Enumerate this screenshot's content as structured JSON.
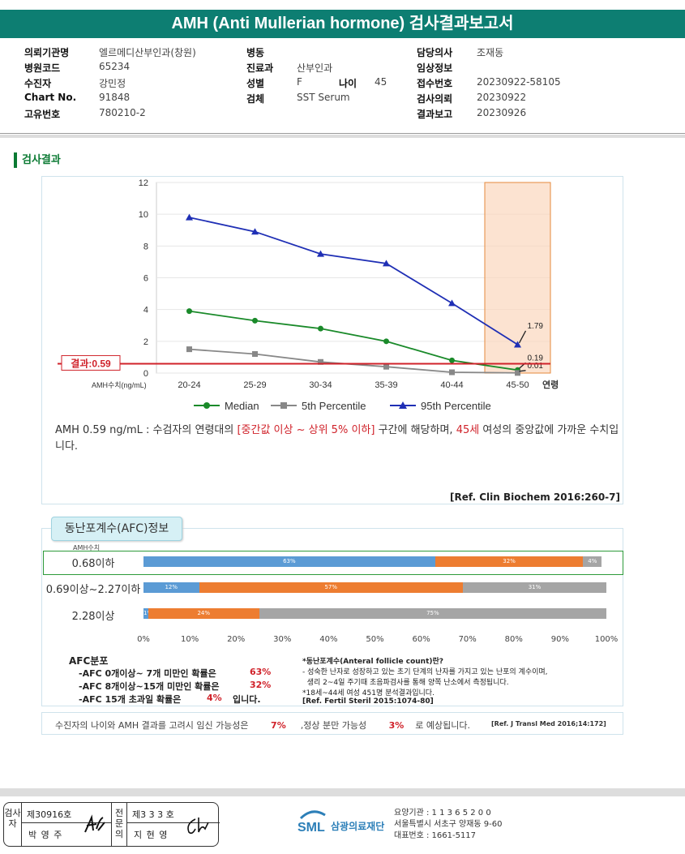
{
  "title": "AMH (Anti Mullerian hormone) 검사결과보고서",
  "info": {
    "col1": [
      [
        "의뢰기관명",
        "엘르메디산부인과(창원)"
      ],
      [
        "병원코드",
        "65234"
      ],
      [
        "수진자",
        "강민정"
      ],
      [
        "Chart No.",
        "91848"
      ],
      [
        "고유번호",
        "780210-2"
      ]
    ],
    "col2": [
      [
        "병동",
        ""
      ],
      [
        "진료과",
        "산부인과"
      ],
      [
        "성별",
        "F"
      ],
      [
        "검체",
        "SST Serum"
      ]
    ],
    "age_label": "나이",
    "age_val": "45",
    "col3": [
      [
        "담당의사",
        "조재동"
      ],
      [
        "임상정보",
        ""
      ],
      [
        "접수번호",
        "20230922-58105"
      ],
      [
        "검사의뢰",
        "20230922"
      ],
      [
        "결과보고",
        "20230926"
      ]
    ]
  },
  "section_title": "검사결과",
  "chart_data": {
    "type": "line",
    "categories": [
      "20-24",
      "25-29",
      "30-34",
      "35-39",
      "40-44",
      "45-50"
    ],
    "x_suffix": "연령",
    "ylabel": "AMH수치(ng/mL)",
    "ylim": [
      0,
      12
    ],
    "yticks": [
      "0",
      "2",
      "4",
      "6",
      "8",
      "10",
      "12"
    ],
    "series": [
      {
        "name": "Median",
        "color": "#1a8a2a",
        "marker": "circle",
        "values": [
          3.9,
          3.3,
          2.8,
          2.0,
          0.8,
          0.19
        ]
      },
      {
        "name": "5th Percentile",
        "color": "#888888",
        "marker": "square",
        "values": [
          1.5,
          1.2,
          0.7,
          0.4,
          0.05,
          0.01
        ]
      },
      {
        "name": "95th Percentile",
        "color": "#1f2fb5",
        "marker": "triangle",
        "values": [
          9.8,
          8.9,
          7.5,
          6.9,
          4.4,
          1.79
        ]
      }
    ],
    "point_labels": [
      "1.79",
      "0.19",
      "0.01"
    ],
    "result_line": 0.59,
    "result_label": "결과:0.59",
    "highlight_category": "45-50"
  },
  "interpretation": {
    "p1": "AMH  0.59 ng/mL : 수검자의 연령대의 ",
    "p2": "[중간값 이상 ~ 상위 5% 이하]",
    "p3": " 구간에 해당하며, ",
    "p4": "45세",
    "p5": " 여성의 중앙값에 가까운 수치입니다.",
    "ref": "[Ref. Clin Biochem 2016:260-7]"
  },
  "afc": {
    "tab": "동난포계수(AFC)정보",
    "amh_label": "AMH수치",
    "rows": [
      {
        "label": "0.68이하",
        "segs": [
          63,
          32,
          4
        ],
        "texts": [
          "63%",
          "32%",
          "4%"
        ]
      },
      {
        "label": "0.69이상~2.27이하",
        "segs": [
          12,
          57,
          31
        ],
        "texts": [
          "12%",
          "57%",
          "31%"
        ]
      },
      {
        "label": "2.28이상",
        "segs": [
          1,
          24,
          75
        ],
        "texts": [
          "1%",
          "24%",
          "75%"
        ]
      }
    ],
    "axis": [
      "0%",
      "10%",
      "20%",
      "30%",
      "40%",
      "50%",
      "60%",
      "70%",
      "80%",
      "90%",
      "100%"
    ],
    "dist_title": "AFC분포",
    "dist": [
      [
        "-AFC  0개이상~ 7개 미만인 확률은",
        "63%",
        ""
      ],
      [
        "-AFC  8개이상~15개 미만인 확률은",
        "32%",
        ""
      ],
      [
        "-AFC  15개 초과일 확률은",
        "4%",
        "입니다."
      ]
    ],
    "note": [
      "*동난포계수(Anteral follicle count)란?",
      "- 성숙한 난자로 성장하고 있는 초기 단계의 난자를 가지고 있는 난포의 계수이며,",
      "  생리 2~4일 주기때 초음파검사를 통해 양쪽 난소에서 측정됩니다.",
      "*18세~44세 여성 451명 분석결과입니다.",
      "[Ref. Fertil Steril 2015:1074-80]"
    ]
  },
  "pregnancy": {
    "t1": "수진자의 나이와 AMH 결과를 고려시 임신 가능성은",
    "v1": "7%",
    "t2": ",정상 분만 가능성",
    "v2": "3%",
    "t3": "로 예상됩니다.",
    "ref": "[Ref. J Transl Med 2016;14:172]"
  },
  "stamp": {
    "h1": "검사자",
    "n1": "제30916호",
    "p1": "박 영 주",
    "h2": "전문의",
    "n2": "제3 3 3 호",
    "p2": "지 현 영"
  },
  "org": {
    "logo": "SML",
    "name": "삼광의료재단",
    "l1": "요양기관 : 1 1 3 6 5 2 0 0",
    "l2": "서울특별시 서초구 양재동 9-60",
    "l3": "대표번호 : 1661-5117"
  }
}
